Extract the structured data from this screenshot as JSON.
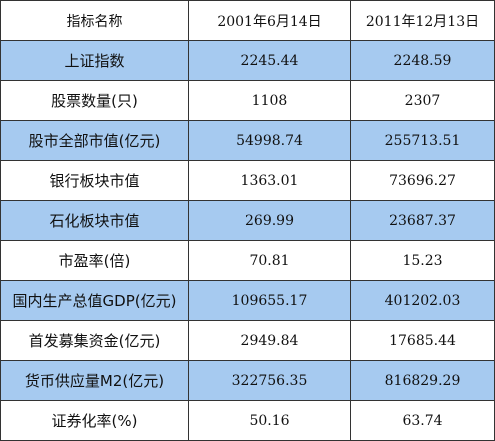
{
  "table": {
    "header": [
      "指标名称",
      "2001年6月14日",
      "2011年12月13日"
    ],
    "rows": [
      [
        "上证指数",
        "2245.44",
        "2248.59"
      ],
      [
        "股票数量(只)",
        "1108",
        "2307"
      ],
      [
        "股市全部市值(亿元)",
        "54998.74",
        "255713.51"
      ],
      [
        "银行板块市值",
        "1363.01",
        "73696.27"
      ],
      [
        "石化板块市值",
        "269.99",
        "23687.37"
      ],
      [
        "市盈率(倍)",
        "70.81",
        "15.23"
      ],
      [
        "国内生产总值GDP(亿元)",
        "109655.17",
        "401202.03"
      ],
      [
        "首发募集资金(亿元)",
        "2949.84",
        "17685.44"
      ],
      [
        "货币供应量M2(亿元)",
        "322756.35",
        "816829.29"
      ],
      [
        "证券化率(%)",
        "50.16",
        "63.74"
      ]
    ]
  }
}
